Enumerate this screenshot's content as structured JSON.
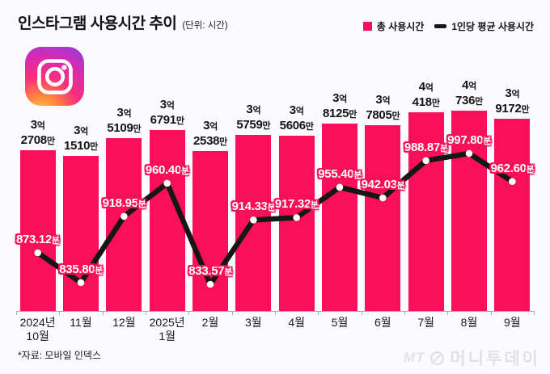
{
  "header": {
    "title": "인스타그램 사용시간 추이",
    "unit_note": "(단위: 시간)"
  },
  "legend": [
    {
      "label": "총 사용시간",
      "swatch": "square",
      "color": "#FA0F5A"
    },
    {
      "label": "1인당 평균 사용시간",
      "swatch": "dash",
      "color": "#161616"
    }
  ],
  "footnote": "*자료: 모바일 인덱스",
  "watermark": {
    "mt": "MT",
    "name": "머니투데이"
  },
  "chart_data": {
    "type": "bar+line",
    "title": "인스타그램 사용시간 추이",
    "unit": "시간",
    "legend_position": "top-right",
    "grid": false,
    "categories": [
      "2024년 10월",
      "11월",
      "12월",
      "2025년 1월",
      "2월",
      "3월",
      "4월",
      "5월",
      "6월",
      "7월",
      "8월",
      "9월"
    ],
    "category_lines": [
      [
        "2024년",
        "10월"
      ],
      [
        "11월"
      ],
      [
        "12월"
      ],
      [
        "2025년",
        "1월"
      ],
      [
        "2월"
      ],
      [
        "3월"
      ],
      [
        "4월"
      ],
      [
        "5월"
      ],
      [
        "6월"
      ],
      [
        "7월"
      ],
      [
        "8월"
      ],
      [
        "9월"
      ]
    ],
    "series": [
      {
        "name": "총 사용시간",
        "type": "bar",
        "unit": "시간(억/만 단위 표기)",
        "values_man": [
          32708,
          31510,
          35109,
          36791,
          32538,
          35759,
          35606,
          38125,
          37805,
          40418,
          40736,
          39172
        ],
        "labels": [
          [
            "3억",
            "2708만"
          ],
          [
            "3억",
            "1510만"
          ],
          [
            "3억",
            "5109만"
          ],
          [
            "3억",
            "6791만"
          ],
          [
            "3억",
            "2538만"
          ],
          [
            "3억",
            "5759만"
          ],
          [
            "3억",
            "5606만"
          ],
          [
            "3억",
            "8125만"
          ],
          [
            "3억",
            "7805만"
          ],
          [
            "4억",
            "418만"
          ],
          [
            "4억",
            "736만"
          ],
          [
            "3억",
            "9172만"
          ]
        ]
      },
      {
        "name": "1인당 평균 사용시간",
        "type": "line",
        "unit": "분",
        "values": [
          873.12,
          835.8,
          918.95,
          960.4,
          833.57,
          914.33,
          917.32,
          955.4,
          942.03,
          988.87,
          997.8,
          962.6
        ],
        "labels": [
          "873.12분",
          "835.80분",
          "918.95분",
          "960.40분",
          "833.57분",
          "914.33분",
          "917.32분",
          "955.40분",
          "942.03분",
          "988.87분",
          "997.80분",
          "962.60분"
        ]
      }
    ],
    "colors": {
      "bar": "#FA0F5A",
      "line": "#161616",
      "line_label_text": "#FFFFFF",
      "line_label_outline": "#FA0F5A",
      "axis": "#ACACAC"
    }
  }
}
